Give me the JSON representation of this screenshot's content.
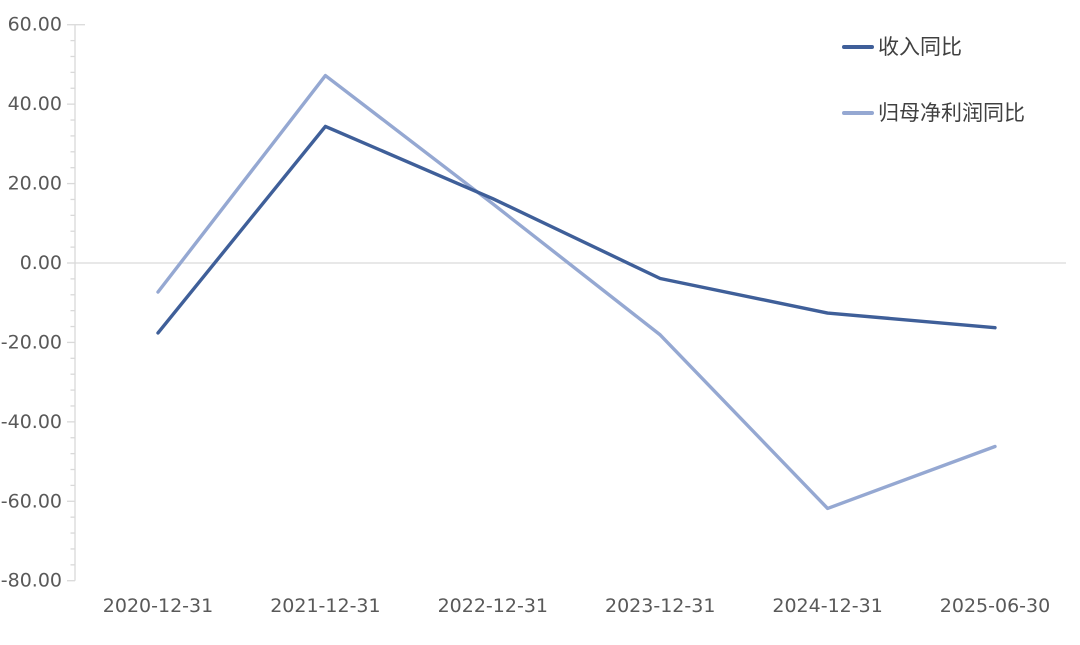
{
  "chart_data": {
    "type": "line",
    "title": "",
    "xlabel": "",
    "ylabel": "",
    "categories": [
      "2020-12-31",
      "2021-12-31",
      "2022-12-31",
      "2023-12-31",
      "2024-12-31",
      "2025-06-30"
    ],
    "series": [
      {
        "name": "收入同比",
        "color": "#3F5F99",
        "values": [
          -17.6,
          34.4,
          16.2,
          -3.9,
          -12.6,
          -16.3
        ]
      },
      {
        "name": "归母净利润同比",
        "color": "#95A8D2",
        "values": [
          -7.3,
          47.2,
          14.9,
          -18.1,
          -61.8,
          -46.2
        ]
      }
    ],
    "ylim": [
      -80,
      60
    ],
    "y_major_step": 20,
    "y_minor_step": 4,
    "y_tick_labels": [
      "60.00",
      "40.00",
      "20.00",
      "0.00",
      "-20.00",
      "-40.00",
      "-60.00",
      "-80.00"
    ],
    "grid": "zero-baseline-only",
    "legend_position": "top-right",
    "axis_color": "#D9D9D9",
    "tick_label_color": "#595959",
    "legend_text_color": "#404040",
    "background": "#FFFFFF"
  }
}
